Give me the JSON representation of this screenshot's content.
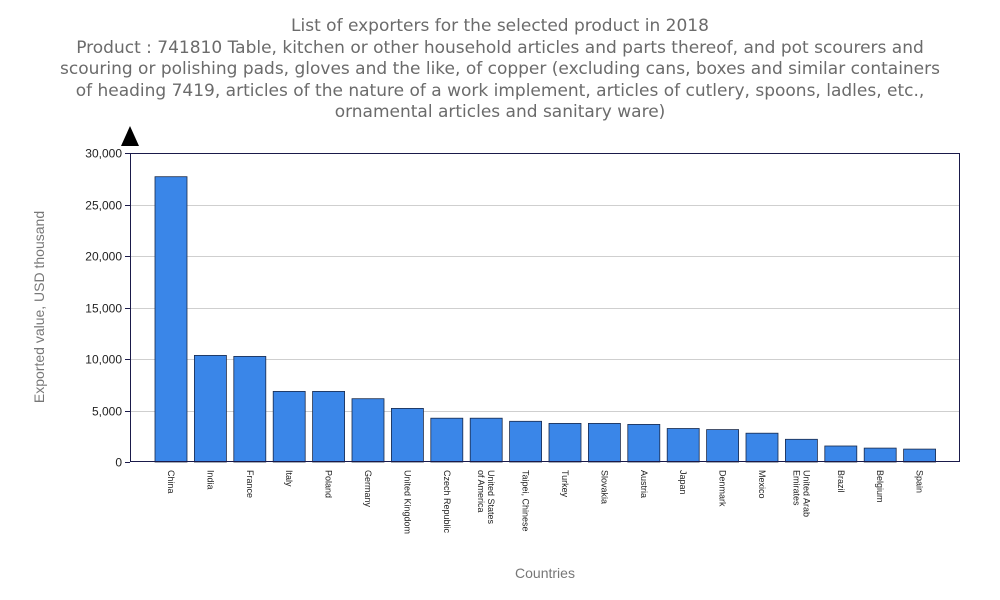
{
  "chart_data": {
    "type": "bar",
    "title": "List of exporters for the selected product in 2018",
    "subtitle_lines": [
      "Product : 741810 Table, kitchen or other household articles and parts thereof, and pot scourers and",
      "scouring or polishing pads, gloves and the like, of copper (excluding cans, boxes and similar containers",
      "of heading 7419, articles of the nature of a work implement, articles of cutlery, spoons, ladles, etc.,",
      "ornamental articles and sanitary ware)"
    ],
    "xlabel": "Countries",
    "ylabel": "Exported value, USD thousand",
    "ylim": [
      0,
      30000
    ],
    "yticks": [
      0,
      5000,
      10000,
      15000,
      20000,
      25000,
      30000
    ],
    "ytick_labels": [
      "0",
      "5,000",
      "10,000",
      "15,000",
      "20,000",
      "25,000",
      "30,000"
    ],
    "grid": true,
    "bar_color": "#3a86e8",
    "categories": [
      "China",
      "India",
      "France",
      "Italy",
      "Poland",
      "Germany",
      "United Kingdom",
      "Czech Republic",
      "United States of America",
      "Taipei, Chinese",
      "Turkey",
      "Slovakia",
      "Austria",
      "Japan",
      "Denmark",
      "Mexico",
      "United Arab Emirates",
      "Brazil",
      "Belgium",
      "Spain"
    ],
    "category_label_lines": [
      [
        "China"
      ],
      [
        "India"
      ],
      [
        "France"
      ],
      [
        "Italy"
      ],
      [
        "Poland"
      ],
      [
        "Germany"
      ],
      [
        "United Kingdom"
      ],
      [
        "Czech Republic"
      ],
      [
        "United States",
        "of America"
      ],
      [
        "Taipei, Chinese"
      ],
      [
        "Turkey"
      ],
      [
        "Slovakia"
      ],
      [
        "Austria"
      ],
      [
        "Japan"
      ],
      [
        "Denmark"
      ],
      [
        "Mexico"
      ],
      [
        "United Arab",
        "Emirates"
      ],
      [
        "Brazil"
      ],
      [
        "Belgium"
      ],
      [
        "Spain"
      ]
    ],
    "values": [
      27700,
      10350,
      10250,
      6850,
      6850,
      6150,
      5200,
      4250,
      4250,
      3950,
      3750,
      3750,
      3650,
      3250,
      3150,
      2800,
      2200,
      1550,
      1350,
      1250
    ]
  }
}
